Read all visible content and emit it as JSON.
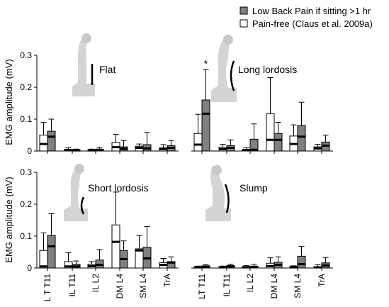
{
  "legend": {
    "entries": [
      {
        "label": "Low Back Pain if sitting >1 hr",
        "color": "#808080"
      },
      {
        "label": "Pain-free (Claus et al. 2009a)",
        "color": "#ffffff"
      }
    ]
  },
  "y_axis_label": "EMG amplitude (mV)",
  "chart_data": [
    {
      "type": "bar",
      "title": "Flat",
      "categories": [
        "L T T11",
        "IL T11",
        "IL L2",
        "DM L4",
        "SM L4",
        "TrA"
      ],
      "ylim": [
        0,
        0.3
      ],
      "yticks": [
        "0",
        "0.1",
        "0.2",
        "0.3"
      ],
      "series": [
        {
          "name": "Pain-free (Claus et al. 2009a)",
          "color": "#ffffff",
          "values": [
            0.05,
            0.005,
            0.004,
            0.027,
            0.015,
            0.01
          ],
          "median": [
            0.022,
            0.003,
            0.002,
            0.012,
            0.01,
            0.006
          ],
          "error_upper": [
            0.09,
            0.01,
            0.006,
            0.052,
            0.022,
            0.02
          ]
        },
        {
          "name": "Low Back Pain if sitting >1 hr",
          "color": "#808080",
          "values": [
            0.062,
            0.004,
            0.006,
            0.013,
            0.02,
            0.017
          ],
          "median": [
            0.045,
            0.002,
            0.003,
            0.007,
            0.008,
            0.01
          ],
          "error_upper": [
            0.1,
            0.006,
            0.011,
            0.033,
            0.058,
            0.033
          ]
        }
      ],
      "annotations": []
    },
    {
      "type": "bar",
      "title": "Long lordosis",
      "categories": [
        "LT T11",
        "IL T11",
        "IL L2",
        "DM L4",
        "SM L4",
        "TrA"
      ],
      "ylim": [
        0,
        0.3
      ],
      "yticks": [],
      "series": [
        {
          "name": "Pain-free (Claus et al. 2009a)",
          "color": "#ffffff",
          "values": [
            0.055,
            0.012,
            0.005,
            0.117,
            0.047,
            0.013
          ],
          "median": [
            0.02,
            0.006,
            0.003,
            0.035,
            0.022,
            0.008
          ],
          "error_upper": [
            0.115,
            0.021,
            0.01,
            0.23,
            0.082,
            0.021
          ]
        },
        {
          "name": "Low Back Pain if sitting >1 hr",
          "color": "#808080",
          "values": [
            0.16,
            0.017,
            0.037,
            0.055,
            0.08,
            0.028
          ],
          "median": [
            0.117,
            0.01,
            0.004,
            0.035,
            0.045,
            0.017
          ],
          "error_upper": [
            0.255,
            0.035,
            0.085,
            0.09,
            0.153,
            0.05
          ]
        }
      ],
      "annotations": [
        "*"
      ]
    },
    {
      "type": "bar",
      "title": "Short lordosis",
      "categories": [
        "L T T11",
        "IL T11",
        "IL L2",
        "DM L4",
        "SM L4",
        "TrA"
      ],
      "ylim": [
        0,
        0.3
      ],
      "yticks": [
        "0",
        "0.1",
        "0.2",
        "0.3"
      ],
      "series": [
        {
          "name": "Pain-free (Claus et al. 2009a)",
          "color": "#ffffff",
          "values": [
            0.055,
            0.02,
            0.012,
            0.135,
            0.06,
            0.017
          ],
          "median": [
            0.005,
            0.005,
            0.006,
            0.082,
            0.055,
            0.01
          ],
          "error_upper": [
            0.11,
            0.048,
            0.02,
            0.238,
            0.102,
            0.03
          ]
        },
        {
          "name": "Low Back Pain if sitting >1 hr",
          "color": "#808080",
          "values": [
            0.102,
            0.012,
            0.025,
            0.055,
            0.065,
            0.02
          ],
          "median": [
            0.068,
            0.005,
            0.01,
            0.028,
            0.03,
            0.017
          ],
          "error_upper": [
            0.17,
            0.022,
            0.058,
            0.085,
            0.13,
            0.035
          ]
        }
      ],
      "annotations": []
    },
    {
      "type": "bar",
      "title": "Slump",
      "categories": [
        "LT T11",
        "IL T11",
        "IL L2",
        "DM L4",
        "SM L4",
        "TrA"
      ],
      "ylim": [
        0,
        0.3
      ],
      "yticks": [],
      "series": [
        {
          "name": "Pain-free (Claus et al. 2009a)",
          "color": "#ffffff",
          "values": [
            0.004,
            0.004,
            0.005,
            0.015,
            0.005,
            0.004
          ],
          "median": [
            0.002,
            0.002,
            0.002,
            0.006,
            0.002,
            0.002
          ],
          "error_upper": [
            0.006,
            0.006,
            0.008,
            0.032,
            0.007,
            0.01
          ]
        },
        {
          "name": "Low Back Pain if sitting >1 hr",
          "color": "#808080",
          "values": [
            0.007,
            0.008,
            0.006,
            0.018,
            0.037,
            0.016
          ],
          "median": [
            0.004,
            0.004,
            0.003,
            0.01,
            0.012,
            0.008
          ],
          "error_upper": [
            0.01,
            0.012,
            0.012,
            0.035,
            0.068,
            0.033
          ]
        }
      ],
      "annotations": []
    }
  ]
}
